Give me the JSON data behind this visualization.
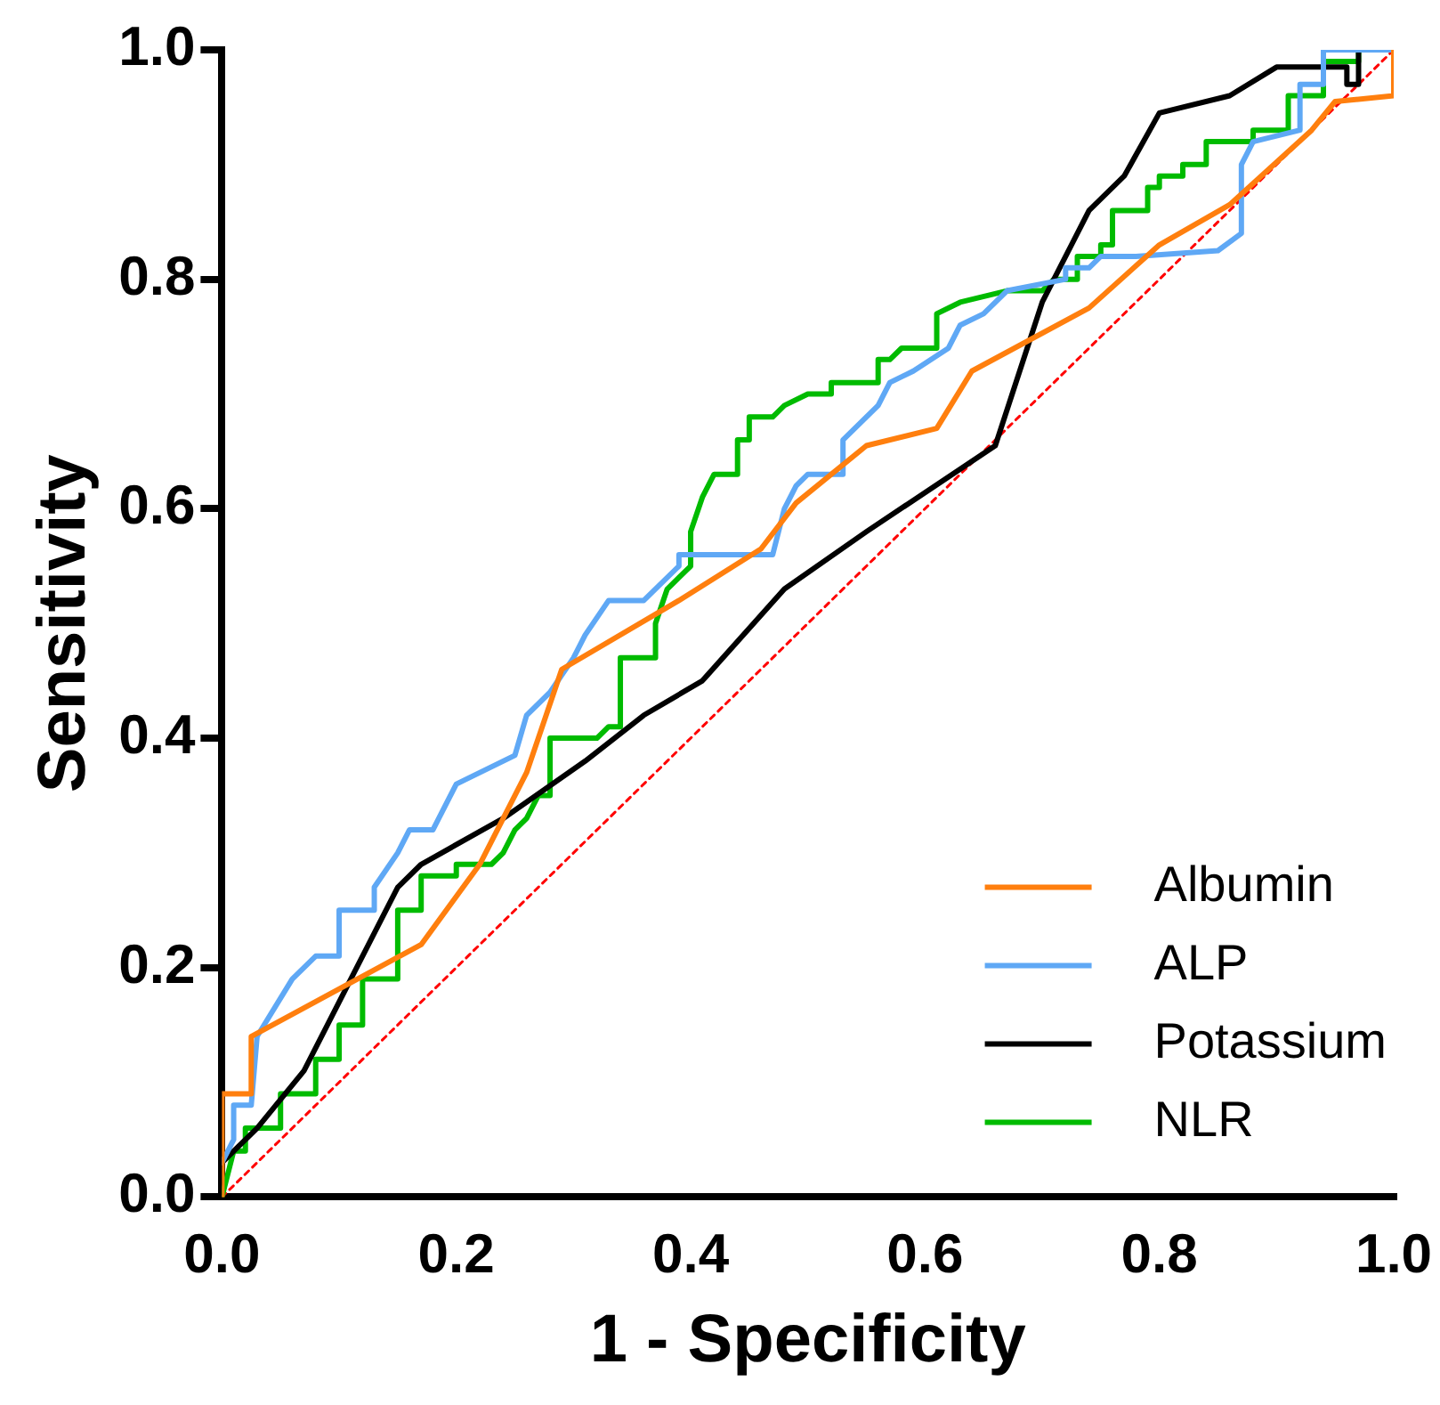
{
  "chart_data": {
    "type": "line",
    "xlabel": "1 - Specificity",
    "ylabel": "Sensitivity",
    "xlim": [
      0,
      1
    ],
    "ylim": [
      0,
      1
    ],
    "xticks": [
      {
        "value": 0,
        "label": "0.0"
      },
      {
        "value": 0.2,
        "label": "0.2"
      },
      {
        "value": 0.4,
        "label": "0.4"
      },
      {
        "value": 0.6,
        "label": "0.6"
      },
      {
        "value": 0.8,
        "label": "0.8"
      },
      {
        "value": 1,
        "label": "1.0"
      }
    ],
    "yticks": [
      {
        "value": 0,
        "label": "0.0"
      },
      {
        "value": 0.2,
        "label": "0.2"
      },
      {
        "value": 0.4,
        "label": "0.4"
      },
      {
        "value": 0.6,
        "label": "0.6"
      },
      {
        "value": 0.8,
        "label": "0.8"
      },
      {
        "value": 1,
        "label": "1.0"
      }
    ],
    "grid": false,
    "legend": "bottom right",
    "marker": "none",
    "line_style": "solid",
    "series": [
      {
        "name": "Albumin",
        "color": "#ff7f0e",
        "x": [
          0,
          0,
          0.025,
          0.025,
          0.17,
          0.22,
          0.26,
          0.29,
          0.39,
          0.46,
          0.49,
          0.55,
          0.61,
          0.64,
          0.74,
          0.8,
          0.86,
          0.93,
          0.95,
          1,
          1
        ],
        "values": [
          0,
          0.09,
          0.09,
          0.14,
          0.22,
          0.29,
          0.37,
          0.46,
          0.52,
          0.565,
          0.605,
          0.655,
          0.67,
          0.72,
          0.775,
          0.83,
          0.865,
          0.93,
          0.955,
          0.96,
          1
        ]
      },
      {
        "name": "ALP",
        "color": "#5fa8f5",
        "x": [
          0,
          0.01,
          0.01,
          0.025,
          0.03,
          0.06,
          0.08,
          0.1,
          0.1,
          0.13,
          0.13,
          0.15,
          0.16,
          0.18,
          0.2,
          0.25,
          0.26,
          0.28,
          0.3,
          0.31,
          0.33,
          0.36,
          0.39,
          0.39,
          0.47,
          0.48,
          0.49,
          0.5,
          0.53,
          0.53,
          0.56,
          0.57,
          0.59,
          0.62,
          0.63,
          0.65,
          0.67,
          0.72,
          0.72,
          0.74,
          0.75,
          0.78,
          0.85,
          0.87,
          0.87,
          0.88,
          0.92,
          0.92,
          0.94,
          0.94,
          1
        ],
        "values": [
          0.03,
          0.05,
          0.08,
          0.08,
          0.14,
          0.19,
          0.21,
          0.21,
          0.25,
          0.25,
          0.27,
          0.3,
          0.32,
          0.32,
          0.36,
          0.385,
          0.42,
          0.44,
          0.47,
          0.49,
          0.52,
          0.52,
          0.55,
          0.56,
          0.56,
          0.6,
          0.62,
          0.63,
          0.63,
          0.66,
          0.69,
          0.71,
          0.72,
          0.74,
          0.76,
          0.77,
          0.79,
          0.8,
          0.81,
          0.81,
          0.82,
          0.82,
          0.825,
          0.84,
          0.9,
          0.92,
          0.93,
          0.97,
          0.97,
          1,
          1
        ]
      },
      {
        "name": "Potassium",
        "color": "#000000",
        "x": [
          0,
          0.03,
          0.07,
          0.1,
          0.15,
          0.17,
          0.24,
          0.31,
          0.36,
          0.41,
          0.48,
          0.55,
          0.66,
          0.7,
          0.74,
          0.77,
          0.8,
          0.86,
          0.9,
          0.96,
          0.96,
          0.97,
          0.97
        ],
        "values": [
          0.03,
          0.06,
          0.11,
          0.17,
          0.27,
          0.29,
          0.33,
          0.38,
          0.42,
          0.45,
          0.53,
          0.58,
          0.655,
          0.78,
          0.86,
          0.89,
          0.945,
          0.96,
          0.985,
          0.985,
          0.97,
          0.97,
          1
        ]
      },
      {
        "name": "NLR",
        "color": "#00bb00",
        "x": [
          0,
          0.01,
          0.02,
          0.02,
          0.05,
          0.05,
          0.08,
          0.08,
          0.1,
          0.1,
          0.12,
          0.12,
          0.15,
          0.15,
          0.17,
          0.17,
          0.2,
          0.2,
          0.23,
          0.24,
          0.25,
          0.26,
          0.27,
          0.28,
          0.28,
          0.32,
          0.33,
          0.34,
          0.34,
          0.37,
          0.37,
          0.38,
          0.39,
          0.4,
          0.4,
          0.41,
          0.42,
          0.44,
          0.44,
          0.45,
          0.45,
          0.47,
          0.48,
          0.5,
          0.52,
          0.52,
          0.56,
          0.56,
          0.57,
          0.58,
          0.61,
          0.61,
          0.63,
          0.67,
          0.7,
          0.71,
          0.73,
          0.73,
          0.75,
          0.75,
          0.76,
          0.76,
          0.79,
          0.79,
          0.8,
          0.8,
          0.82,
          0.82,
          0.84,
          0.84,
          0.88,
          0.88,
          0.91,
          0.91,
          0.94,
          0.94,
          0.97,
          0.97
        ],
        "values": [
          0,
          0.04,
          0.04,
          0.06,
          0.06,
          0.09,
          0.09,
          0.12,
          0.12,
          0.15,
          0.15,
          0.19,
          0.19,
          0.25,
          0.25,
          0.28,
          0.28,
          0.29,
          0.29,
          0.3,
          0.32,
          0.33,
          0.35,
          0.35,
          0.4,
          0.4,
          0.41,
          0.41,
          0.47,
          0.47,
          0.5,
          0.53,
          0.54,
          0.55,
          0.58,
          0.61,
          0.63,
          0.63,
          0.66,
          0.66,
          0.68,
          0.68,
          0.69,
          0.7,
          0.7,
          0.71,
          0.71,
          0.73,
          0.73,
          0.74,
          0.74,
          0.77,
          0.78,
          0.79,
          0.79,
          0.8,
          0.8,
          0.82,
          0.82,
          0.83,
          0.83,
          0.86,
          0.86,
          0.88,
          0.88,
          0.89,
          0.89,
          0.9,
          0.9,
          0.92,
          0.92,
          0.93,
          0.93,
          0.96,
          0.96,
          0.99,
          0.99,
          1
        ]
      },
      {
        "type": "line",
        "color": "#ff0000",
        "line_style": "dotted",
        "x": [
          0,
          1
        ],
        "values": [
          0,
          1
        ]
      }
    ]
  }
}
